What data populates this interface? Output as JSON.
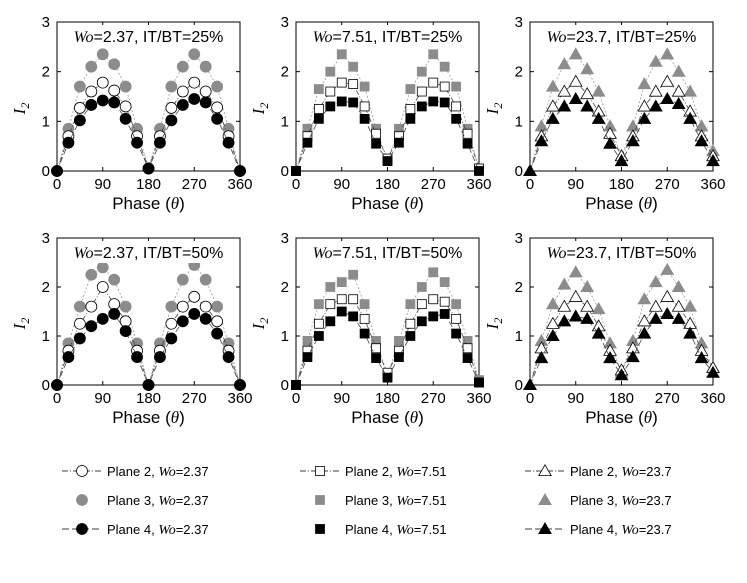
{
  "colors": {
    "plane2": "#ffffff",
    "plane3": "#8c8c8c",
    "plane4": "#000000",
    "line": "#555555"
  },
  "chart_data": [
    {
      "type": "line",
      "title": "Wo=2.37, IT/BT=25%",
      "title_prefix": "Wo",
      "title_suffix": "=2.37, IT/BT=25%",
      "xlabel": "Phase (θ)",
      "xlabel_main": "Phase (",
      "xlabel_var": "θ",
      "xlabel_end": ")",
      "ylabel": "I2",
      "xlim": [
        0,
        360
      ],
      "ylim": [
        0,
        3
      ],
      "xticks": [
        0,
        90,
        180,
        270,
        360
      ],
      "yticks": [
        0,
        1,
        2,
        3
      ],
      "marker": "circle",
      "x": [
        0,
        22.5,
        45,
        67.5,
        90,
        112.5,
        135,
        157.5,
        180,
        202.5,
        225,
        247.5,
        270,
        292.5,
        315,
        337.5,
        360
      ],
      "series": [
        {
          "name": "Plane 2, Wo=2.37",
          "fill": "plane2",
          "values": [
            0,
            0.7,
            1.27,
            1.6,
            1.78,
            1.62,
            1.3,
            0.7,
            0.05,
            0.7,
            1.27,
            1.6,
            1.78,
            1.6,
            1.28,
            0.7,
            0
          ]
        },
        {
          "name": "Plane 3, Wo=2.37",
          "fill": "plane3",
          "values": [
            0,
            0.85,
            1.7,
            2.1,
            2.35,
            2.15,
            1.7,
            0.85,
            0.05,
            0.85,
            1.7,
            2.1,
            2.35,
            2.1,
            1.7,
            0.85,
            0
          ]
        },
        {
          "name": "Plane 4, Wo=2.37",
          "fill": "plane4",
          "values": [
            0,
            0.57,
            1.02,
            1.33,
            1.42,
            1.38,
            1.05,
            0.57,
            0.05,
            0.57,
            1.02,
            1.33,
            1.45,
            1.38,
            1.05,
            0.57,
            0
          ]
        }
      ]
    },
    {
      "type": "line",
      "title": "Wo=7.51, IT/BT=25%",
      "title_prefix": "Wo",
      "title_suffix": "=7.51, IT/BT=25%",
      "xlabel": "Phase (θ)",
      "xlabel_main": "Phase (",
      "xlabel_var": "θ",
      "xlabel_end": ")",
      "ylabel": "I2",
      "xlim": [
        0,
        360
      ],
      "ylim": [
        0,
        3
      ],
      "xticks": [
        0,
        90,
        180,
        270,
        360
      ],
      "yticks": [
        0,
        1,
        2,
        3
      ],
      "marker": "square",
      "x": [
        0,
        22.5,
        45,
        67.5,
        90,
        112.5,
        135,
        157.5,
        180,
        202.5,
        225,
        247.5,
        270,
        292.5,
        315,
        337.5,
        360
      ],
      "series": [
        {
          "name": "Plane 2, Wo=7.51",
          "fill": "plane2",
          "values": [
            0,
            0.7,
            1.25,
            1.6,
            1.78,
            1.75,
            1.3,
            0.75,
            0.25,
            0.7,
            1.25,
            1.6,
            1.78,
            1.7,
            1.3,
            0.75,
            0.05
          ]
        },
        {
          "name": "Plane 3, Wo=7.51",
          "fill": "plane3",
          "values": [
            0,
            0.85,
            1.65,
            2.0,
            2.35,
            2.1,
            1.7,
            0.85,
            0.2,
            0.85,
            1.65,
            2.0,
            2.35,
            2.1,
            1.7,
            0.85,
            0.05
          ]
        },
        {
          "name": "Plane 4, Wo=7.51",
          "fill": "plane4",
          "values": [
            0,
            0.57,
            1.05,
            1.3,
            1.4,
            1.38,
            1.05,
            0.55,
            0.2,
            0.57,
            1.05,
            1.3,
            1.4,
            1.38,
            1.05,
            0.55,
            0
          ]
        }
      ]
    },
    {
      "type": "line",
      "title": "Wo=23.7, IT/BT=25%",
      "title_prefix": "Wo",
      "title_suffix": "=23.7, IT/BT=25%",
      "xlabel": "Phase (θ)",
      "xlabel_main": "Phase (",
      "xlabel_var": "θ",
      "xlabel_end": ")",
      "ylabel": "I2",
      "xlim": [
        0,
        360
      ],
      "ylim": [
        0,
        3
      ],
      "xticks": [
        0,
        90,
        180,
        270,
        360
      ],
      "yticks": [
        0,
        1,
        2,
        3
      ],
      "marker": "triangle",
      "x": [
        0,
        22.5,
        45,
        67.5,
        90,
        112.5,
        135,
        157.5,
        180,
        202.5,
        225,
        247.5,
        270,
        292.5,
        315,
        337.5,
        360
      ],
      "series": [
        {
          "name": "Plane 2, Wo=23.7",
          "fill": "plane2",
          "values": [
            0,
            0.7,
            1.3,
            1.6,
            1.8,
            1.55,
            1.2,
            0.75,
            0.3,
            0.7,
            1.3,
            1.6,
            1.8,
            1.6,
            1.2,
            0.7,
            0.3
          ]
        },
        {
          "name": "Plane 3, Wo=23.7",
          "fill": "plane3",
          "values": [
            0,
            0.9,
            1.7,
            2.15,
            2.35,
            2.05,
            1.6,
            0.9,
            0.3,
            0.9,
            1.75,
            2.2,
            2.35,
            2.0,
            1.6,
            0.9,
            0.4
          ]
        },
        {
          "name": "Plane 4, Wo=23.7",
          "fill": "plane4",
          "values": [
            0,
            0.6,
            1.05,
            1.3,
            1.45,
            1.3,
            1.05,
            0.55,
            0.2,
            0.6,
            1.05,
            1.3,
            1.45,
            1.35,
            1.05,
            0.6,
            0.2
          ]
        }
      ]
    },
    {
      "type": "line",
      "title": "Wo=2.37, IT/BT=50%",
      "title_prefix": "Wo",
      "title_suffix": "=2.37, IT/BT=50%",
      "xlabel": "Phase (θ)",
      "xlabel_main": "Phase (",
      "xlabel_var": "θ",
      "xlabel_end": ")",
      "ylabel": "I2",
      "xlim": [
        0,
        360
      ],
      "ylim": [
        0,
        3
      ],
      "xticks": [
        0,
        90,
        180,
        270,
        360
      ],
      "yticks": [
        0,
        1,
        2,
        3
      ],
      "marker": "circle",
      "x": [
        0,
        22.5,
        45,
        67.5,
        90,
        112.5,
        135,
        157.5,
        180,
        202.5,
        225,
        247.5,
        270,
        292.5,
        315,
        337.5,
        360
      ],
      "series": [
        {
          "name": "Plane 2, Wo=2.37",
          "fill": "plane2",
          "values": [
            0,
            0.7,
            1.25,
            1.6,
            2.0,
            1.65,
            1.3,
            0.7,
            0.0,
            0.7,
            1.25,
            1.6,
            1.8,
            1.6,
            1.3,
            0.7,
            0
          ]
        },
        {
          "name": "Plane 3, Wo=2.37",
          "fill": "plane3",
          "values": [
            0,
            0.85,
            1.6,
            2.25,
            2.4,
            2.15,
            1.6,
            0.85,
            0.0,
            0.85,
            1.6,
            2.15,
            2.45,
            2.15,
            1.6,
            0.85,
            0
          ]
        },
        {
          "name": "Plane 4, Wo=2.37",
          "fill": "plane4",
          "values": [
            0,
            0.57,
            0.95,
            1.2,
            1.35,
            1.45,
            1.1,
            0.57,
            0.0,
            0.57,
            0.95,
            1.3,
            1.45,
            1.35,
            1.05,
            0.57,
            0
          ]
        }
      ]
    },
    {
      "type": "line",
      "title": "Wo=7.51, IT/BT=50%",
      "title_prefix": "Wo",
      "title_suffix": "=7.51, IT/BT=50%",
      "xlabel": "Phase (θ)",
      "xlabel_main": "Phase (",
      "xlabel_var": "θ",
      "xlabel_end": ")",
      "ylabel": "I2",
      "xlim": [
        0,
        360
      ],
      "ylim": [
        0,
        3
      ],
      "xticks": [
        0,
        90,
        180,
        270,
        360
      ],
      "yticks": [
        0,
        1,
        2,
        3
      ],
      "marker": "square",
      "x": [
        0,
        22.5,
        45,
        67.5,
        90,
        112.5,
        135,
        157.5,
        180,
        202.5,
        225,
        247.5,
        270,
        292.5,
        315,
        337.5,
        360
      ],
      "series": [
        {
          "name": "Plane 2, Wo=7.51",
          "fill": "plane2",
          "values": [
            0,
            0.7,
            1.25,
            1.65,
            1.75,
            1.75,
            1.35,
            0.75,
            0.25,
            0.7,
            1.25,
            1.65,
            1.75,
            1.7,
            1.35,
            0.75,
            0.05
          ]
        },
        {
          "name": "Plane 3, Wo=7.51",
          "fill": "plane3",
          "values": [
            0,
            0.9,
            1.65,
            2.0,
            2.1,
            2.25,
            1.65,
            0.9,
            0.2,
            0.9,
            1.65,
            2.0,
            2.3,
            2.1,
            1.65,
            0.9,
            0.1
          ]
        },
        {
          "name": "Plane 4, Wo=7.51",
          "fill": "plane4",
          "values": [
            0,
            0.57,
            1.0,
            1.3,
            1.5,
            1.4,
            1.05,
            0.55,
            0.15,
            0.57,
            1.0,
            1.3,
            1.4,
            1.45,
            1.05,
            0.55,
            0.05
          ]
        }
      ]
    },
    {
      "type": "line",
      "title": "Wo=23.7, IT/BT=50%",
      "title_prefix": "Wo",
      "title_suffix": "=23.7, IT/BT=50%",
      "xlabel": "Phase (θ)",
      "xlabel_main": "Phase (",
      "xlabel_var": "θ",
      "xlabel_end": ")",
      "ylabel": "I2",
      "xlim": [
        0,
        360
      ],
      "ylim": [
        0,
        3
      ],
      "xticks": [
        0,
        90,
        180,
        270,
        360
      ],
      "yticks": [
        0,
        1,
        2,
        3
      ],
      "marker": "triangle",
      "x": [
        0,
        22.5,
        45,
        67.5,
        90,
        112.5,
        135,
        157.5,
        180,
        202.5,
        225,
        247.5,
        270,
        292.5,
        315,
        337.5,
        360
      ],
      "series": [
        {
          "name": "Plane 2, Wo=23.7",
          "fill": "plane2",
          "values": [
            0,
            0.75,
            1.25,
            1.6,
            1.8,
            1.6,
            1.2,
            0.7,
            0.3,
            0.75,
            1.3,
            1.6,
            1.8,
            1.6,
            1.25,
            0.7,
            0.35
          ]
        },
        {
          "name": "Plane 3, Wo=23.7",
          "fill": "plane3",
          "values": [
            0,
            0.9,
            1.65,
            2.05,
            2.3,
            2.0,
            1.55,
            0.85,
            0.25,
            0.9,
            1.75,
            2.1,
            2.35,
            2.0,
            1.6,
            0.85,
            0.35
          ]
        },
        {
          "name": "Plane 4, Wo=23.7",
          "fill": "plane4",
          "values": [
            0,
            0.55,
            1.0,
            1.3,
            1.4,
            1.35,
            1.05,
            0.55,
            0.2,
            0.57,
            1.05,
            1.35,
            1.45,
            1.35,
            1.05,
            0.55,
            0.25
          ]
        }
      ]
    }
  ],
  "legend": [
    {
      "prefix": "Plane 2, ",
      "var": "Wo",
      "suffix": "=2.37",
      "marker": "circle",
      "fill": "plane2",
      "line": "dashdot"
    },
    {
      "prefix": "Plane 3, ",
      "var": "Wo",
      "suffix": "=2.37",
      "marker": "circle",
      "fill": "plane3",
      "line": "none"
    },
    {
      "prefix": "Plane 4, ",
      "var": "Wo",
      "suffix": "=2.37",
      "marker": "circle",
      "fill": "plane4",
      "line": "dashdot"
    },
    {
      "prefix": "Plane 2, ",
      "var": "Wo",
      "suffix": "=7.51",
      "marker": "square",
      "fill": "plane2",
      "line": "dashdot"
    },
    {
      "prefix": "Plane 3, ",
      "var": "Wo",
      "suffix": "=7.51",
      "marker": "square",
      "fill": "plane3",
      "line": "none"
    },
    {
      "prefix": "Plane 4, ",
      "var": "Wo",
      "suffix": "=7.51",
      "marker": "square",
      "fill": "plane4",
      "line": "none"
    },
    {
      "prefix": "Plane 2, ",
      "var": "Wo",
      "suffix": "=23.7",
      "marker": "triangle",
      "fill": "plane2",
      "line": "dashdot"
    },
    {
      "prefix": "Plane 3, ",
      "var": "Wo",
      "suffix": "=23.7",
      "marker": "triangle",
      "fill": "plane3",
      "line": "none"
    },
    {
      "prefix": "Plane 4, ",
      "var": "Wo",
      "suffix": "=23.7",
      "marker": "triangle",
      "fill": "plane4",
      "line": "dashdot"
    }
  ]
}
